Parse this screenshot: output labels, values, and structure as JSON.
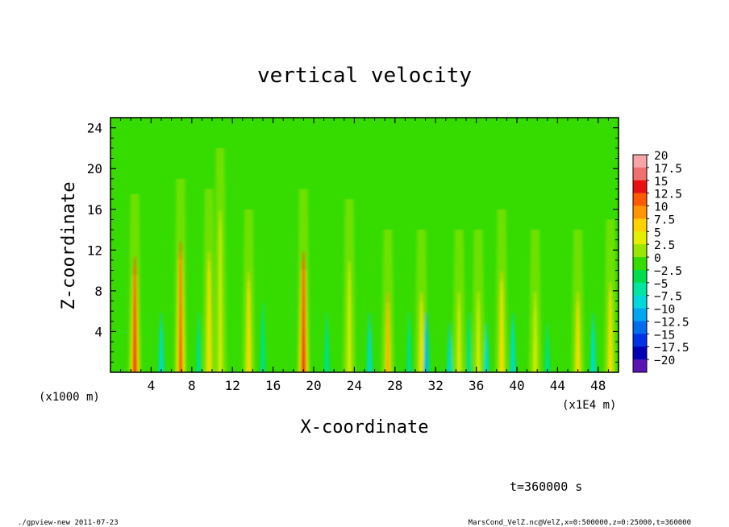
{
  "chart_data": {
    "type": "heatmap",
    "title": "vertical velocity",
    "xlabel": "X-coordinate",
    "ylabel": "Z-coordinate",
    "x_unit_note": "(x1E4 m)",
    "y_unit_note": "(x1000 m)",
    "xlim": [
      0,
      50
    ],
    "ylim": [
      0,
      25
    ],
    "x_ticks": [
      "4",
      "8",
      "12",
      "16",
      "20",
      "24",
      "28",
      "32",
      "36",
      "40",
      "44",
      "48"
    ],
    "y_ticks": [
      "4",
      "8",
      "12",
      "16",
      "20",
      "24"
    ],
    "colorbar": {
      "labels": [
        "20",
        "17.5",
        "15",
        "12.5",
        "10",
        "7.5",
        "5",
        "2.5",
        "0",
        "−2.5",
        "−5",
        "−7.5",
        "−10",
        "−12.5",
        "−15",
        "−17.5",
        "−20"
      ],
      "values": [
        20,
        17.5,
        15,
        12.5,
        10,
        7.5,
        5,
        2.5,
        0,
        -2.5,
        -5,
        -7.5,
        -10,
        -12.5,
        -15,
        -17.5,
        -20
      ],
      "colors": [
        "#f6a6a6",
        "#f07070",
        "#e81010",
        "#ff5a00",
        "#ff9600",
        "#ffd200",
        "#e6ee00",
        "#9ae600",
        "#36dc00",
        "#00dc50",
        "#00e6a0",
        "#00d8dc",
        "#00a6f0",
        "#006cf0",
        "#0032e6",
        "#0000b4",
        "#5a14b4"
      ],
      "background_color": "#36dc00"
    },
    "updrafts": [
      {
        "x": 2.4,
        "zmax": 9.5,
        "v": 15
      },
      {
        "x": 6.9,
        "zmax": 11,
        "v": 14
      },
      {
        "x": 9.7,
        "zmax": 10,
        "v": 8
      },
      {
        "x": 10.8,
        "zmax": 14,
        "v": 6
      },
      {
        "x": 13.6,
        "zmax": 8,
        "v": 7
      },
      {
        "x": 19.0,
        "zmax": 10,
        "v": 16
      },
      {
        "x": 23.5,
        "zmax": 9,
        "v": 6
      },
      {
        "x": 27.3,
        "zmax": 6,
        "v": 10
      },
      {
        "x": 30.6,
        "zmax": 6,
        "v": 7
      },
      {
        "x": 34.3,
        "zmax": 6,
        "v": 6
      },
      {
        "x": 36.2,
        "zmax": 6,
        "v": 6
      },
      {
        "x": 38.5,
        "zmax": 8,
        "v": 8
      },
      {
        "x": 41.8,
        "zmax": 6,
        "v": 6
      },
      {
        "x": 46.0,
        "zmax": 6,
        "v": 7
      },
      {
        "x": 49.2,
        "zmax": 7,
        "v": 8
      }
    ],
    "downdrafts": [
      {
        "x": 5.0,
        "zmax": 4,
        "v": -7
      },
      {
        "x": 8.7,
        "zmax": 4,
        "v": -6
      },
      {
        "x": 15.0,
        "zmax": 5,
        "v": -5
      },
      {
        "x": 21.3,
        "zmax": 4,
        "v": -6
      },
      {
        "x": 25.5,
        "zmax": 4,
        "v": -7
      },
      {
        "x": 29.4,
        "zmax": 4,
        "v": -5
      },
      {
        "x": 31.1,
        "zmax": 4,
        "v": -10
      },
      {
        "x": 33.4,
        "zmax": 3,
        "v": -8
      },
      {
        "x": 35.3,
        "zmax": 4,
        "v": -6
      },
      {
        "x": 37.0,
        "zmax": 3,
        "v": -7
      },
      {
        "x": 39.6,
        "zmax": 4,
        "v": -8
      },
      {
        "x": 43.0,
        "zmax": 3,
        "v": -6
      },
      {
        "x": 47.5,
        "zmax": 4,
        "v": -8
      }
    ],
    "time_label": "t=360000 s"
  },
  "footer": {
    "left": "./gpview-new  2011-07-23",
    "right": "MarsCond_VelZ.nc@VelZ,x=0:500000,z=0:25000,t=360000"
  }
}
